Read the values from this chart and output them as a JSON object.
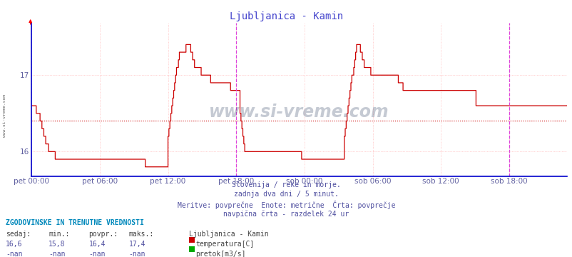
{
  "title": "Ljubljanica - Kamin",
  "background_color": "#ffffff",
  "plot_bg_color": "#ffffff",
  "grid_color": "#ffaaaa",
  "line_color": "#cc0000",
  "avg_line_color": "#cc0000",
  "vline_color": "#dd44dd",
  "ylabel_color": "#6060a0",
  "xlabel_color": "#6060a0",
  "title_color": "#4444cc",
  "ylim": [
    15.68,
    17.68
  ],
  "yticks": [
    16.0,
    17.0
  ],
  "avg_value": 16.4,
  "x_tick_labels": [
    "pet 00:00",
    "pet 06:00",
    "pet 12:00",
    "pet 18:00",
    "sob 00:00",
    "sob 06:00",
    "sob 12:00",
    "sob 18:00"
  ],
  "x_tick_positions": [
    0,
    72,
    144,
    216,
    288,
    360,
    432,
    504
  ],
  "vline_positions": [
    216,
    504
  ],
  "subtitle_lines": [
    "Slovenija / reke in morje.",
    "zadnja dva dni / 5 minut.",
    "Meritve: povprečne  Enote: metrične  Črta: povprečje",
    "navpična črta - razdelek 24 ur"
  ],
  "info_title": "ZGODOVINSKE IN TRENUTNE VREDNOSTI",
  "col_headers": [
    "sedaj:",
    "min.:",
    "povpr.:",
    "maks.:"
  ],
  "row1_vals": [
    "16,6",
    "15,8",
    "16,4",
    "17,4"
  ],
  "row2_vals": [
    "-nan",
    "-nan",
    "-nan",
    "-nan"
  ],
  "legend_label1": "Ljubljanica - Kamin",
  "legend_item1": "temperatura[C]",
  "legend_item2": "pretok[m3/s]",
  "legend_color1": "#cc0000",
  "legend_color2": "#00aa00",
  "watermark": "www.si-vreme.com",
  "side_watermark": "www.si-vreme.com",
  "temp_data": [
    16.6,
    16.6,
    16.6,
    16.6,
    16.6,
    16.5,
    16.5,
    16.5,
    16.5,
    16.4,
    16.4,
    16.3,
    16.3,
    16.2,
    16.2,
    16.1,
    16.1,
    16.1,
    16.0,
    16.0,
    16.0,
    16.0,
    16.0,
    16.0,
    16.0,
    15.9,
    15.9,
    15.9,
    15.9,
    15.9,
    15.9,
    15.9,
    15.9,
    15.9,
    15.9,
    15.9,
    15.9,
    15.9,
    15.9,
    15.9,
    15.9,
    15.9,
    15.9,
    15.9,
    15.9,
    15.9,
    15.9,
    15.9,
    15.9,
    15.9,
    15.9,
    15.9,
    15.9,
    15.9,
    15.9,
    15.9,
    15.9,
    15.9,
    15.9,
    15.9,
    15.9,
    15.9,
    15.9,
    15.9,
    15.9,
    15.9,
    15.9,
    15.9,
    15.9,
    15.9,
    15.9,
    15.9,
    15.9,
    15.9,
    15.9,
    15.9,
    15.9,
    15.9,
    15.9,
    15.9,
    15.9,
    15.9,
    15.9,
    15.9,
    15.9,
    15.9,
    15.9,
    15.9,
    15.9,
    15.9,
    15.9,
    15.9,
    15.9,
    15.9,
    15.9,
    15.9,
    15.9,
    15.9,
    15.9,
    15.9,
    15.9,
    15.9,
    15.9,
    15.9,
    15.9,
    15.9,
    15.9,
    15.9,
    15.9,
    15.9,
    15.9,
    15.9,
    15.9,
    15.9,
    15.9,
    15.9,
    15.9,
    15.9,
    15.9,
    15.9,
    15.8,
    15.8,
    15.8,
    15.8,
    15.8,
    15.8,
    15.8,
    15.8,
    15.8,
    15.8,
    15.8,
    15.8,
    15.8,
    15.8,
    15.8,
    15.8,
    15.8,
    15.8,
    15.8,
    15.8,
    15.8,
    15.8,
    15.8,
    15.8,
    16.2,
    16.3,
    16.4,
    16.5,
    16.6,
    16.7,
    16.8,
    16.9,
    17.0,
    17.1,
    17.1,
    17.2,
    17.3,
    17.3,
    17.3,
    17.3,
    17.3,
    17.3,
    17.3,
    17.4,
    17.4,
    17.4,
    17.4,
    17.4,
    17.3,
    17.3,
    17.2,
    17.2,
    17.1,
    17.1,
    17.1,
    17.1,
    17.1,
    17.1,
    17.1,
    17.0,
    17.0,
    17.0,
    17.0,
    17.0,
    17.0,
    17.0,
    17.0,
    17.0,
    17.0,
    16.9,
    16.9,
    16.9,
    16.9,
    16.9,
    16.9,
    16.9,
    16.9,
    16.9,
    16.9,
    16.9,
    16.9,
    16.9,
    16.9,
    16.9,
    16.9,
    16.9,
    16.9,
    16.9,
    16.9,
    16.9,
    16.8,
    16.8,
    16.8,
    16.8,
    16.8,
    16.8,
    16.8,
    16.8,
    16.8,
    16.8,
    16.5,
    16.4,
    16.3,
    16.2,
    16.1,
    16.0,
    16.0,
    16.0,
    16.0,
    16.0,
    16.0,
    16.0,
    16.0,
    16.0,
    16.0,
    16.0,
    16.0,
    16.0,
    16.0,
    16.0,
    16.0,
    16.0,
    16.0,
    16.0,
    16.0,
    16.0,
    16.0,
    16.0,
    16.0,
    16.0,
    16.0,
    16.0,
    16.0,
    16.0,
    16.0,
    16.0,
    16.0,
    16.0,
    16.0,
    16.0,
    16.0,
    16.0,
    16.0,
    16.0,
    16.0,
    16.0,
    16.0,
    16.0,
    16.0,
    16.0,
    16.0,
    16.0,
    16.0,
    16.0,
    16.0,
    16.0,
    16.0,
    16.0,
    16.0,
    16.0,
    16.0,
    16.0,
    16.0,
    16.0,
    16.0,
    15.9,
    15.9,
    15.9,
    15.9,
    15.9,
    15.9,
    15.9,
    15.9,
    15.9,
    15.9,
    15.9,
    15.9,
    15.9,
    15.9,
    15.9,
    15.9,
    15.9,
    15.9,
    15.9,
    15.9,
    15.9,
    15.9,
    15.9,
    15.9,
    15.9,
    15.9,
    15.9,
    15.9,
    15.9,
    15.9,
    15.9,
    15.9,
    15.9,
    15.9,
    15.9,
    15.9,
    15.9,
    15.9,
    15.9,
    15.9,
    15.9,
    15.9,
    15.9,
    15.9,
    15.9,
    16.2,
    16.3,
    16.4,
    16.5,
    16.6,
    16.7,
    16.8,
    16.9,
    17.0,
    17.0,
    17.1,
    17.2,
    17.3,
    17.4,
    17.4,
    17.4,
    17.4,
    17.3,
    17.3,
    17.2,
    17.2,
    17.1,
    17.1,
    17.1,
    17.1,
    17.1,
    17.1,
    17.1,
    17.0,
    17.0,
    17.0,
    17.0,
    17.0,
    17.0,
    17.0,
    17.0,
    17.0,
    17.0,
    17.0,
    17.0,
    17.0,
    17.0,
    17.0,
    17.0,
    17.0,
    17.0,
    17.0,
    17.0,
    17.0,
    17.0,
    17.0,
    17.0,
    17.0,
    17.0,
    17.0,
    17.0,
    17.0,
    16.9,
    16.9,
    16.9,
    16.9,
    16.9,
    16.8,
    16.8,
    16.8,
    16.8,
    16.8,
    16.8,
    16.8,
    16.8,
    16.8,
    16.8,
    16.8,
    16.8,
    16.8,
    16.8,
    16.8,
    16.8,
    16.8,
    16.8,
    16.8,
    16.8,
    16.8,
    16.8,
    16.8,
    16.8,
    16.8,
    16.8,
    16.8,
    16.8,
    16.8,
    16.8,
    16.8,
    16.8,
    16.8,
    16.8,
    16.8,
    16.8,
    16.8,
    16.8,
    16.8,
    16.8,
    16.8,
    16.8,
    16.8,
    16.8,
    16.8,
    16.8,
    16.8,
    16.8,
    16.8,
    16.8,
    16.8,
    16.8,
    16.8,
    16.8,
    16.8,
    16.8,
    16.8,
    16.8,
    16.8,
    16.8,
    16.8,
    16.8,
    16.8,
    16.8,
    16.8,
    16.8,
    16.8,
    16.8,
    16.8,
    16.8,
    16.8,
    16.8,
    16.8,
    16.8,
    16.8,
    16.8,
    16.8,
    16.6,
    16.6,
    16.6,
    16.6,
    16.6,
    16.6,
    16.6,
    16.6,
    16.6,
    16.6,
    16.6,
    16.6,
    16.6,
    16.6,
    16.6,
    16.6,
    16.6,
    16.6,
    16.6,
    16.6,
    16.6,
    16.6,
    16.6,
    16.6,
    16.6,
    16.6,
    16.6,
    16.6,
    16.6,
    16.6,
    16.6,
    16.6,
    16.6,
    16.6,
    16.6,
    16.6,
    16.6,
    16.6,
    16.6,
    16.6,
    16.6,
    16.6,
    16.6,
    16.6,
    16.6,
    16.6,
    16.6,
    16.6,
    16.6,
    16.6,
    16.6,
    16.6,
    16.6,
    16.6,
    16.6,
    16.6,
    16.6,
    16.6,
    16.6,
    16.6,
    16.6,
    16.6,
    16.6,
    16.6,
    16.6,
    16.6,
    16.6,
    16.6,
    16.6,
    16.6,
    16.6,
    16.6,
    16.6,
    16.6,
    16.6,
    16.6,
    16.6,
    16.6,
    16.6,
    16.6,
    16.6,
    16.6,
    16.6,
    16.6,
    16.6,
    16.6,
    16.6,
    16.6,
    16.6,
    16.6,
    16.6,
    16.6,
    16.6,
    16.6,
    16.6,
    16.6,
    16.6
  ]
}
